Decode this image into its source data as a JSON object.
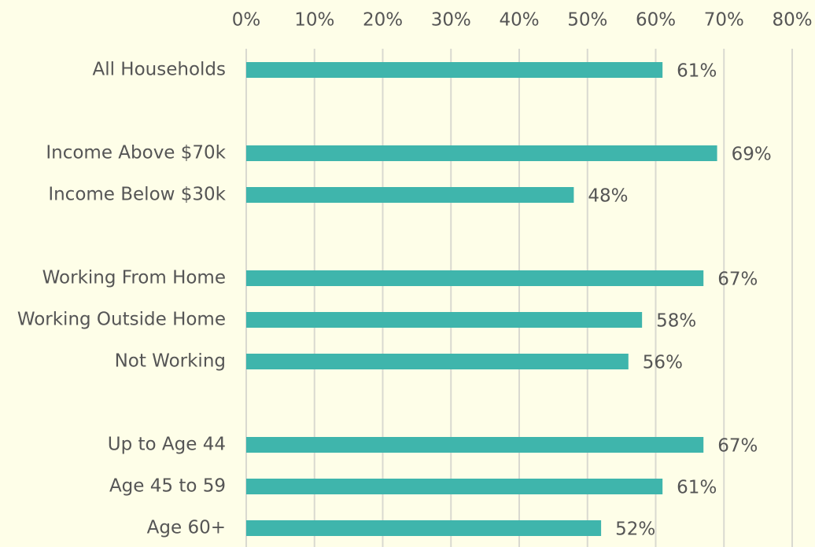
{
  "chart_data": {
    "type": "hbar",
    "categories": [
      "All Households",
      null,
      "Income Above $70k",
      "Income Below $30k",
      null,
      "Working From Home",
      "Working Outside Home",
      "Not Working",
      null,
      "Up to Age 44",
      "Age 45 to 59",
      "Age 60+"
    ],
    "values": [
      61,
      null,
      69,
      48,
      null,
      67,
      58,
      56,
      null,
      67,
      61,
      52
    ],
    "value_labels": [
      "61%",
      null,
      "69%",
      "48%",
      null,
      "67%",
      "58%",
      "56%",
      null,
      "67%",
      "61%",
      "52%"
    ],
    "color": "#3fb5ac",
    "xlim": [
      0,
      80
    ],
    "xticks": [
      {
        "value": 0,
        "label": "0%"
      },
      {
        "value": 10,
        "label": "10%"
      },
      {
        "value": 20,
        "label": "20%"
      },
      {
        "value": 30,
        "label": "30%"
      },
      {
        "value": 40,
        "label": "40%"
      },
      {
        "value": 50,
        "label": "50%"
      },
      {
        "value": 60,
        "label": "60%"
      },
      {
        "value": 70,
        "label": "70%"
      },
      {
        "value": 80,
        "label": "80%"
      }
    ],
    "grid": true
  }
}
